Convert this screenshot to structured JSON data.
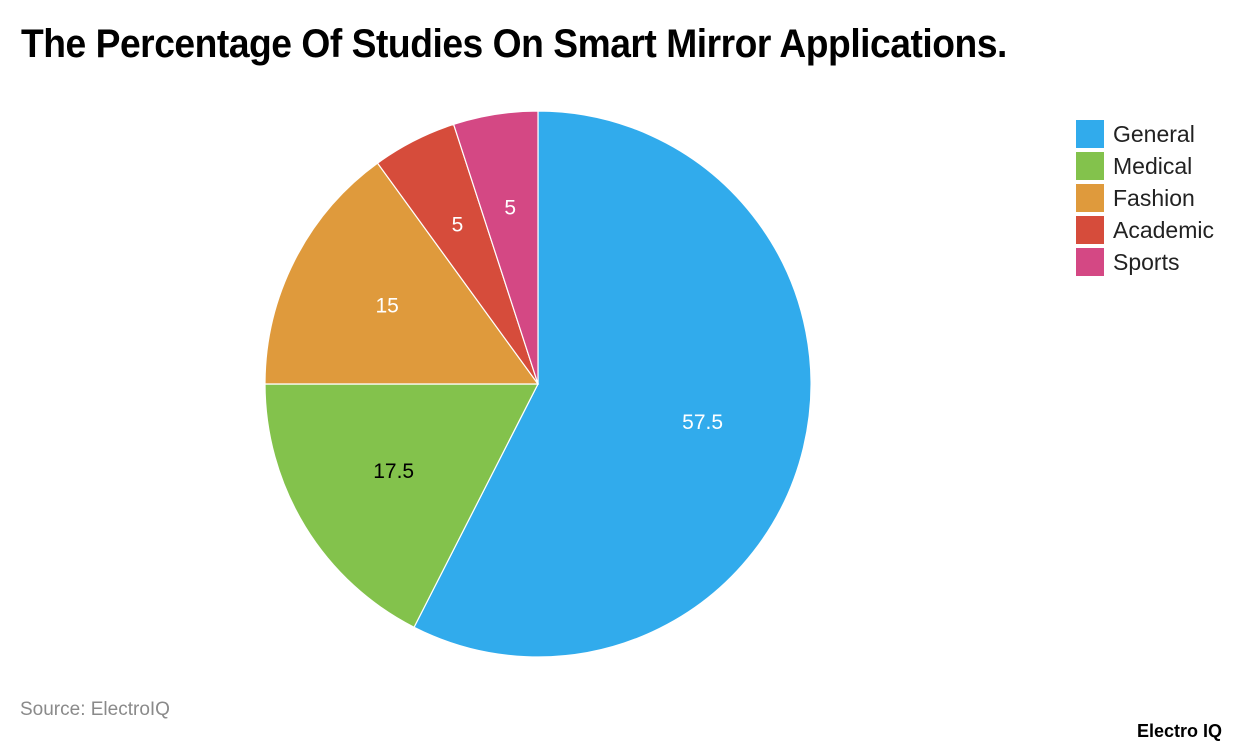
{
  "title": "The Percentage Of Studies On Smart Mirror Applications.",
  "source": "Source: ElectroIQ",
  "brand": "Electro IQ",
  "chart_data": {
    "type": "pie",
    "title": "The Percentage Of Studies On Smart Mirror Applications.",
    "categories": [
      "General",
      "Medical",
      "Fashion",
      "Academic",
      "Sports"
    ],
    "values": [
      57.5,
      17.5,
      15,
      5,
      5
    ],
    "colors": [
      "#31abec",
      "#83c24c",
      "#df9a3c",
      "#d64c3b",
      "#d44884"
    ],
    "labels": [
      "57.5",
      "17.5",
      "15",
      "5",
      "5"
    ],
    "label_colors": [
      "#ffffff",
      "#000000",
      "#ffffff",
      "#ffffff",
      "#ffffff"
    ],
    "legend_position": "right",
    "start_angle_deg": 0,
    "direction": "clockwise"
  },
  "legend": [
    {
      "label": "General",
      "color": "#31abec"
    },
    {
      "label": "Medical",
      "color": "#83c24c"
    },
    {
      "label": "Fashion",
      "color": "#df9a3c"
    },
    {
      "label": "Academic",
      "color": "#d64c3b"
    },
    {
      "label": "Sports",
      "color": "#d44884"
    }
  ]
}
